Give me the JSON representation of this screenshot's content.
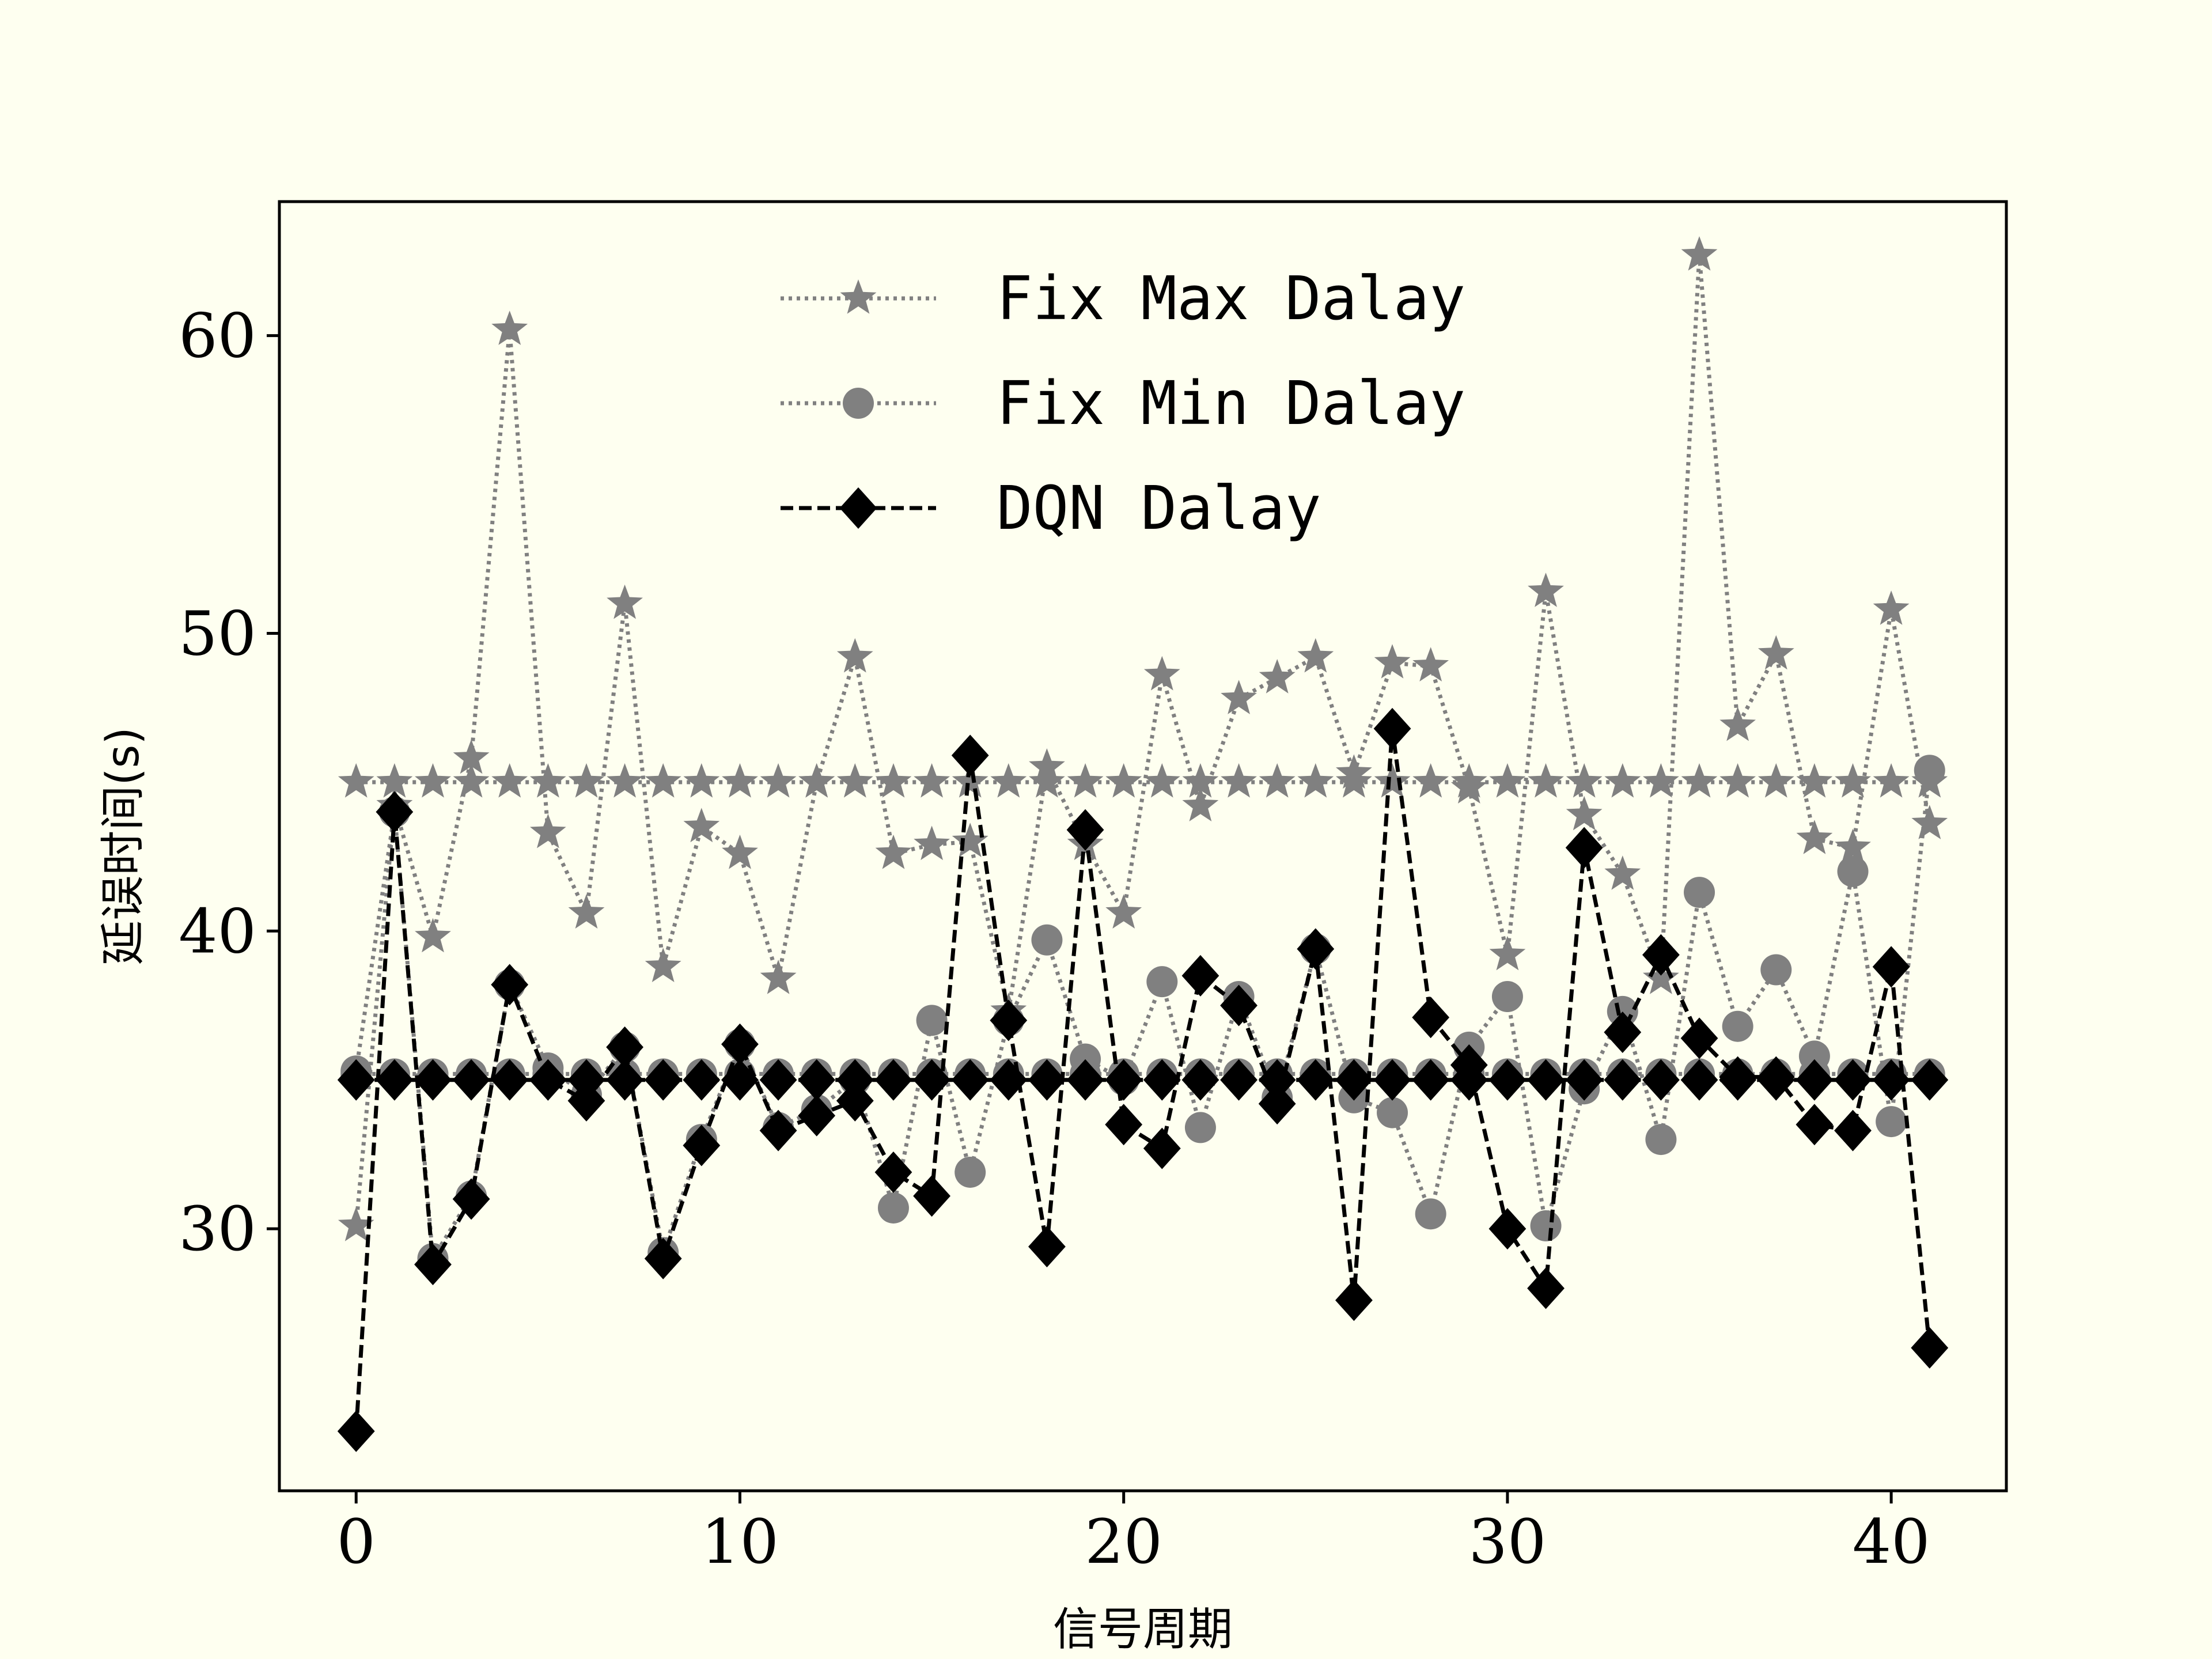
{
  "chart_data": {
    "type": "line",
    "title": "",
    "xlabel": "信号周期",
    "ylabel": "延误时间(s)",
    "xlim": [
      -2,
      43
    ],
    "ylim": [
      21.2,
      64.5
    ],
    "xticks": [
      0,
      10,
      20,
      30,
      40
    ],
    "yticks": [
      30,
      40,
      50,
      60
    ],
    "grid": false,
    "legend_position": "top-center",
    "x": [
      0,
      1,
      2,
      3,
      4,
      5,
      6,
      7,
      8,
      9,
      10,
      11,
      12,
      13,
      14,
      15,
      16,
      17,
      18,
      19,
      20,
      21,
      22,
      23,
      24,
      25,
      26,
      27,
      28,
      29,
      30,
      31,
      32,
      33,
      34,
      35,
      36,
      37,
      38,
      39,
      40,
      41
    ],
    "series": [
      {
        "name": "Fix Max Dalay",
        "marker": "star",
        "linestyle": "dotted",
        "color": "#808080",
        "values": [
          30.1,
          44.2,
          39.8,
          45.8,
          60.2,
          43.3,
          40.6,
          51.0,
          38.8,
          43.5,
          42.6,
          38.4,
          45.0,
          49.2,
          42.6,
          42.9,
          43.0,
          37.3,
          45.5,
          42.9,
          40.6,
          48.6,
          44.2,
          47.8,
          48.5,
          49.2,
          45.3,
          49.0,
          48.9,
          44.8,
          39.2,
          51.4,
          43.9,
          41.9,
          38.4,
          62.7,
          46.9,
          49.3,
          43.1,
          42.8,
          50.8,
          43.6
        ]
      },
      {
        "name": "",
        "marker": "star",
        "linestyle": "dotted",
        "color": "#808080",
        "values": [
          45,
          45,
          45,
          45,
          45,
          45,
          45,
          45,
          45,
          45,
          45,
          45,
          45,
          45,
          45,
          45,
          45,
          45,
          45,
          45,
          45,
          45,
          45,
          45,
          45,
          45,
          45,
          45,
          45,
          45,
          45,
          45,
          45,
          45,
          45,
          45,
          45,
          45,
          45,
          45,
          45,
          45
        ]
      },
      {
        "name": "Fix Min Dalay",
        "marker": "circle",
        "linestyle": "dotted",
        "color": "#808080",
        "values": [
          35.3,
          44.0,
          29.0,
          31.1,
          38.2,
          35.4,
          34.5,
          36.1,
          29.2,
          33.0,
          36.2,
          33.4,
          34.0,
          35.0,
          30.7,
          37.0,
          31.9,
          37.0,
          39.7,
          35.7,
          35.0,
          38.3,
          33.4,
          37.8,
          34.4,
          39.4,
          34.4,
          33.9,
          30.5,
          36.1,
          37.8,
          30.1,
          34.7,
          37.3,
          33.0,
          41.3,
          36.8,
          38.7,
          35.8,
          42.0,
          33.6,
          45.4
        ]
      },
      {
        "name": "",
        "marker": "circle",
        "linestyle": "dotted",
        "color": "#808080",
        "values": [
          35.2,
          35.2,
          35.2,
          35.2,
          35.2,
          35.2,
          35.2,
          35.2,
          35.2,
          35.2,
          35.2,
          35.2,
          35.2,
          35.2,
          35.2,
          35.2,
          35.2,
          35.2,
          35.2,
          35.2,
          35.2,
          35.2,
          35.2,
          35.2,
          35.2,
          35.2,
          35.2,
          35.2,
          35.2,
          35.2,
          35.2,
          35.2,
          35.2,
          35.2,
          35.2,
          35.2,
          35.2,
          35.2,
          35.2,
          35.2,
          35.2,
          35.2
        ]
      },
      {
        "name": "DQN Dalay",
        "marker": "diamond",
        "linestyle": "dashed",
        "color": "#000000",
        "values": [
          23.2,
          44.0,
          28.8,
          31.0,
          38.2,
          35.0,
          34.3,
          36.1,
          29.0,
          32.8,
          36.2,
          33.3,
          33.8,
          34.3,
          31.9,
          31.1,
          45.9,
          37.0,
          29.4,
          43.4,
          33.5,
          32.7,
          38.5,
          37.5,
          34.2,
          39.4,
          27.6,
          46.8,
          37.1,
          35.5,
          30.0,
          28.0,
          42.8,
          36.6,
          39.2,
          36.4,
          35.1,
          35.1,
          33.5,
          33.3,
          38.8,
          26.0
        ]
      },
      {
        "name": "",
        "marker": "diamond",
        "linestyle": "dashed",
        "color": "#000000",
        "values": [
          35,
          35,
          35,
          35,
          35,
          35,
          35,
          35,
          35,
          35,
          35,
          35,
          35,
          35,
          35,
          35,
          35,
          35,
          35,
          35,
          35,
          35,
          35,
          35,
          35,
          35,
          35,
          35,
          35,
          35,
          35,
          35,
          35,
          35,
          35,
          35,
          35,
          35,
          35,
          35,
          35,
          35
        ]
      }
    ]
  }
}
